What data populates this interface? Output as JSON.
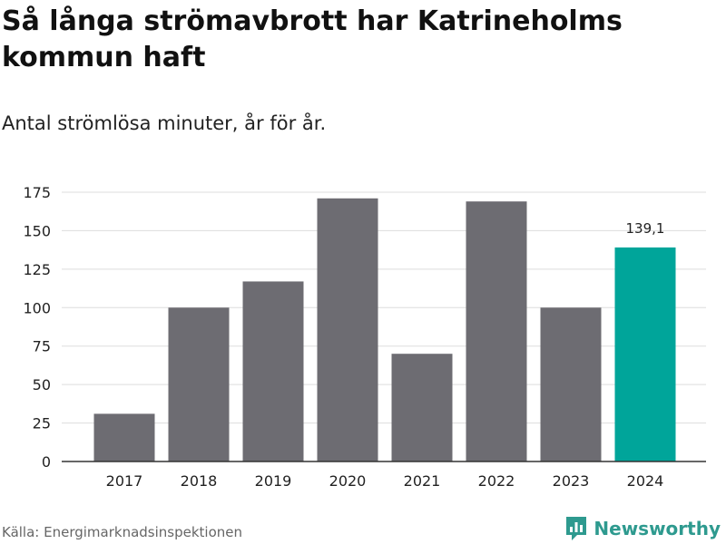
{
  "header": {
    "title": "Så långa strömavbrott har Katrineholms kommun haft",
    "subtitle": "Antal strömlösa minuter, år för år."
  },
  "footer": {
    "source": "Källa: Energimarknadsinspektionen",
    "brand": "Newsworthy"
  },
  "colors": {
    "bar": "#6d6c72",
    "highlight": "#00a59a",
    "grid": "#dddddd",
    "axis": "#333333",
    "brand": "#2e9a8f"
  },
  "chart_data": {
    "type": "bar",
    "title": "Så långa strömavbrott har Katrineholms kommun haft",
    "subtitle": "Antal strömlösa minuter, år för år.",
    "xlabel": "",
    "ylabel": "",
    "categories": [
      "2017",
      "2018",
      "2019",
      "2020",
      "2021",
      "2022",
      "2023",
      "2024"
    ],
    "values": [
      31,
      100,
      117,
      171,
      70,
      169,
      100,
      139.1
    ],
    "highlight_index": 7,
    "data_labels": [
      {
        "category": "2024",
        "text": "139,1"
      }
    ],
    "ylim": [
      0,
      175
    ],
    "yticks": [
      0,
      25,
      50,
      75,
      100,
      125,
      150,
      175
    ],
    "grid": true,
    "legend": "none"
  }
}
